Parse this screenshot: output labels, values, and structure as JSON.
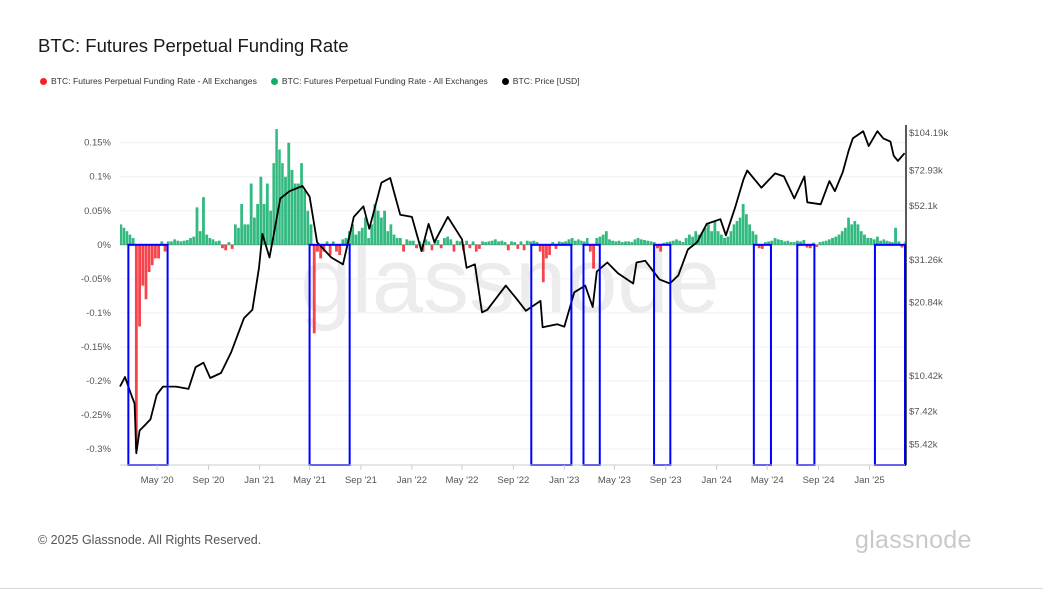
{
  "title": "BTC: Futures Perpetual Funding Rate",
  "legend": [
    {
      "label": "BTC: Futures Perpetual Funding Rate - All Exchanges",
      "color": "#f5222d"
    },
    {
      "label": "BTC: Futures Perpetual Funding Rate - All Exchanges",
      "color": "#0fae6a"
    },
    {
      "label": "BTC: Price [USD]",
      "color": "#000000"
    }
  ],
  "watermark": "glassnode",
  "footer": {
    "copyright": "© 2025 Glassnode. All Rights Reserved.",
    "logo": "glassnode"
  },
  "chart_data": {
    "type": "bar+line",
    "title": "BTC: Futures Perpetual Funding Rate",
    "xlim": [
      "2020-02-02",
      "2025-03-27"
    ],
    "x_ticks": [
      {
        "date": "2020-05-01",
        "label": "May '20"
      },
      {
        "date": "2020-09-01",
        "label": "Sep '20"
      },
      {
        "date": "2021-01-01",
        "label": "Jan '21"
      },
      {
        "date": "2021-05-01",
        "label": "May '21"
      },
      {
        "date": "2021-09-01",
        "label": "Sep '21"
      },
      {
        "date": "2022-01-01",
        "label": "Jan '22"
      },
      {
        "date": "2022-05-01",
        "label": "May '22"
      },
      {
        "date": "2022-09-01",
        "label": "Sep '22"
      },
      {
        "date": "2023-01-01",
        "label": "Jan '23"
      },
      {
        "date": "2023-05-01",
        "label": "May '23"
      },
      {
        "date": "2023-09-01",
        "label": "Sep '23"
      },
      {
        "date": "2024-01-01",
        "label": "Jan '24"
      },
      {
        "date": "2024-05-01",
        "label": "May '24"
      },
      {
        "date": "2024-09-01",
        "label": "Sep '24"
      },
      {
        "date": "2025-01-01",
        "label": "Jan '25"
      }
    ],
    "y_left": {
      "unit": "%",
      "ylim": [
        -0.3235,
        0.176
      ],
      "ticks": [
        {
          "value": 0.15,
          "label": "0.15%"
        },
        {
          "value": 0.1,
          "label": "0.1%"
        },
        {
          "value": 0.05,
          "label": "0.05%"
        },
        {
          "value": 0,
          "label": "0%"
        },
        {
          "value": -0.05,
          "label": "-0.05%"
        },
        {
          "value": -0.1,
          "label": "-0.1%"
        },
        {
          "value": -0.15,
          "label": "-0.15%"
        },
        {
          "value": -0.2,
          "label": "-0.2%"
        },
        {
          "value": -0.25,
          "label": "-0.25%"
        },
        {
          "value": -0.3,
          "label": "-0.3%"
        }
      ],
      "grid": true
    },
    "y_right": {
      "scale": "log",
      "ylim": [
        4470,
        112400
      ],
      "ticks": [
        {
          "value": 104190,
          "label": "$104.19k"
        },
        {
          "value": 72930,
          "label": "$72.93k"
        },
        {
          "value": 52100,
          "label": "$52.1k"
        },
        {
          "value": 31260,
          "label": "$31.26k"
        },
        {
          "value": 20840,
          "label": "$20.84k"
        },
        {
          "value": 10420,
          "label": "$10.42k"
        },
        {
          "value": 7420,
          "label": "$7.42k"
        },
        {
          "value": 5420,
          "label": "$5.42k"
        }
      ]
    },
    "colors": {
      "positive": "#0fae6a",
      "negative": "#f5222d",
      "price": "#000000",
      "highlight": "#0000ff"
    },
    "funding_rate_quarter_month": [
      {
        "month": "2020-02",
        "values": [
          0.03,
          0.025,
          0.02,
          0.015
        ]
      },
      {
        "month": "2020-03",
        "values": [
          0.01,
          -0.3,
          -0.12,
          -0.06
        ]
      },
      {
        "month": "2020-04",
        "values": [
          -0.08,
          -0.04,
          -0.03,
          -0.02
        ]
      },
      {
        "month": "2020-05",
        "values": [
          -0.02,
          0.005,
          -0.01,
          0.005
        ]
      },
      {
        "month": "2020-06",
        "values": [
          0.005,
          0.008,
          0.006,
          0.005
        ]
      },
      {
        "month": "2020-07",
        "values": [
          0.006,
          0.007,
          0.01,
          0.012
        ]
      },
      {
        "month": "2020-08",
        "values": [
          0.055,
          0.02,
          0.07,
          0.015
        ]
      },
      {
        "month": "2020-09",
        "values": [
          0.01,
          0.008,
          0.005,
          0.006
        ]
      },
      {
        "month": "2020-10",
        "values": [
          -0.005,
          -0.008,
          0.004,
          -0.006
        ]
      },
      {
        "month": "2020-11",
        "values": [
          0.03,
          0.025,
          0.06,
          0.03
        ]
      },
      {
        "month": "2020-12",
        "values": [
          0.03,
          0.09,
          0.04,
          0.06
        ]
      },
      {
        "month": "2021-01",
        "values": [
          0.1,
          0.06,
          0.09,
          0.05
        ]
      },
      {
        "month": "2021-02",
        "values": [
          0.12,
          0.17,
          0.14,
          0.12
        ]
      },
      {
        "month": "2021-03",
        "values": [
          0.1,
          0.15,
          0.11,
          0.09
        ]
      },
      {
        "month": "2021-04",
        "values": [
          0.09,
          0.12,
          0.08,
          0.05
        ]
      },
      {
        "month": "2021-05",
        "values": [
          0.03,
          -0.13,
          -0.01,
          -0.02
        ]
      },
      {
        "month": "2021-06",
        "values": [
          -0.01,
          0.005,
          -0.015,
          0.005
        ]
      },
      {
        "month": "2021-07",
        "values": [
          -0.01,
          -0.015,
          0.008,
          0.01
        ]
      },
      {
        "month": "2021-08",
        "values": [
          0.02,
          0.03,
          0.015,
          0.02
        ]
      },
      {
        "month": "2021-09",
        "values": [
          0.025,
          0.04,
          0.01,
          0.03
        ]
      },
      {
        "month": "2021-10",
        "values": [
          0.06,
          0.05,
          0.04,
          0.05
        ]
      },
      {
        "month": "2021-11",
        "values": [
          0.02,
          0.03,
          0.015,
          0.01
        ]
      },
      {
        "month": "2021-12",
        "values": [
          0.01,
          -0.01,
          0.008,
          0.006
        ]
      },
      {
        "month": "2022-01",
        "values": [
          0.006,
          -0.005,
          0.005,
          -0.01
        ]
      },
      {
        "month": "2022-02",
        "values": [
          0.008,
          0.005,
          -0.008,
          0.006
        ]
      },
      {
        "month": "2022-03",
        "values": [
          0.007,
          -0.005,
          0.01,
          0.012
        ]
      },
      {
        "month": "2022-04",
        "values": [
          0.008,
          -0.01,
          0.006,
          0.005
        ]
      },
      {
        "month": "2022-05",
        "values": [
          -0.008,
          0.006,
          -0.005,
          0.005
        ]
      },
      {
        "month": "2022-06",
        "values": [
          -0.01,
          -0.006,
          0.005,
          0.004
        ]
      },
      {
        "month": "2022-07",
        "values": [
          0.005,
          0.006,
          0.008,
          0.005
        ]
      },
      {
        "month": "2022-08",
        "values": [
          0.006,
          0.004,
          -0.008,
          0.005
        ]
      },
      {
        "month": "2022-09",
        "values": [
          0.004,
          -0.006,
          0.005,
          -0.008
        ]
      },
      {
        "month": "2022-10",
        "values": [
          0.006,
          0.005,
          0.006,
          0.004
        ]
      },
      {
        "month": "2022-11",
        "values": [
          -0.01,
          -0.055,
          -0.02,
          -0.015
        ]
      },
      {
        "month": "2022-12",
        "values": [
          0.004,
          -0.006,
          0.005,
          0.004
        ]
      },
      {
        "month": "2023-01",
        "values": [
          0.005,
          0.008,
          0.01,
          0.006
        ]
      },
      {
        "month": "2023-02",
        "values": [
          0.008,
          0.006,
          0.005,
          0.01
        ]
      },
      {
        "month": "2023-03",
        "values": [
          -0.01,
          -0.035,
          0.01,
          0.012
        ]
      },
      {
        "month": "2023-04",
        "values": [
          0.015,
          0.02,
          0.008,
          0.006
        ]
      },
      {
        "month": "2023-05",
        "values": [
          0.005,
          0.006,
          0.004,
          0.005
        ]
      },
      {
        "month": "2023-06",
        "values": [
          0.005,
          0.004,
          0.008,
          0.01
        ]
      },
      {
        "month": "2023-07",
        "values": [
          0.008,
          0.007,
          0.006,
          0.005
        ]
      },
      {
        "month": "2023-08",
        "values": [
          0.004,
          -0.005,
          -0.01,
          0.003
        ]
      },
      {
        "month": "2023-09",
        "values": [
          0.004,
          0.005,
          0.006,
          0.008
        ]
      },
      {
        "month": "2023-10",
        "values": [
          0.006,
          0.004,
          0.01,
          0.015
        ]
      },
      {
        "month": "2023-11",
        "values": [
          0.012,
          0.02,
          0.015,
          0.018
        ]
      },
      {
        "month": "2023-12",
        "values": [
          0.025,
          0.03,
          0.02,
          0.035
        ]
      },
      {
        "month": "2024-01",
        "values": [
          0.02,
          0.015,
          0.01,
          0.012
        ]
      },
      {
        "month": "2024-02",
        "values": [
          0.02,
          0.03,
          0.035,
          0.04
        ]
      },
      {
        "month": "2024-03",
        "values": [
          0.06,
          0.045,
          0.03,
          0.02
        ]
      },
      {
        "month": "2024-04",
        "values": [
          0.015,
          -0.005,
          -0.006,
          0.004
        ]
      },
      {
        "month": "2024-05",
        "values": [
          0.005,
          0.006,
          0.01,
          0.008
        ]
      },
      {
        "month": "2024-06",
        "values": [
          0.007,
          0.005,
          0.006,
          0.004
        ]
      },
      {
        "month": "2024-07",
        "values": [
          0.004,
          0.006,
          0.005,
          0.007
        ]
      },
      {
        "month": "2024-08",
        "values": [
          -0.004,
          -0.005,
          0.003,
          -0.003
        ]
      },
      {
        "month": "2024-09",
        "values": [
          0.004,
          0.005,
          0.006,
          0.008
        ]
      },
      {
        "month": "2024-10",
        "values": [
          0.01,
          0.012,
          0.015,
          0.02
        ]
      },
      {
        "month": "2024-11",
        "values": [
          0.025,
          0.04,
          0.03,
          0.035
        ]
      },
      {
        "month": "2024-12",
        "values": [
          0.03,
          0.02,
          0.015,
          0.01
        ]
      },
      {
        "month": "2025-01",
        "values": [
          0.01,
          0.008,
          0.012,
          0.006
        ]
      },
      {
        "month": "2025-02",
        "values": [
          0.008,
          0.006,
          0.005,
          0.004
        ]
      },
      {
        "month": "2025-03",
        "values": [
          0.025,
          0.005,
          -0.004,
          0.005
        ]
      }
    ],
    "price": [
      [
        "2020-02-02",
        9400
      ],
      [
        "2020-02-14",
        10300
      ],
      [
        "2020-03-01",
        8600
      ],
      [
        "2020-03-08",
        8000
      ],
      [
        "2020-03-12",
        5000
      ],
      [
        "2020-03-20",
        6200
      ],
      [
        "2020-04-01",
        6500
      ],
      [
        "2020-04-15",
        6900
      ],
      [
        "2020-04-30",
        8700
      ],
      [
        "2020-05-15",
        9400
      ],
      [
        "2020-06-15",
        9400
      ],
      [
        "2020-07-15",
        9200
      ],
      [
        "2020-08-01",
        11300
      ],
      [
        "2020-08-20",
        11800
      ],
      [
        "2020-09-05",
        10200
      ],
      [
        "2020-10-01",
        10700
      ],
      [
        "2020-10-25",
        13000
      ],
      [
        "2020-11-25",
        18000
      ],
      [
        "2020-12-15",
        19500
      ],
      [
        "2020-12-31",
        29000
      ],
      [
        "2021-01-08",
        40000
      ],
      [
        "2021-01-25",
        32000
      ],
      [
        "2021-02-20",
        56000
      ],
      [
        "2021-03-14",
        60000
      ],
      [
        "2021-04-14",
        63000
      ],
      [
        "2021-05-01",
        57000
      ],
      [
        "2021-05-19",
        37000
      ],
      [
        "2021-06-22",
        32000
      ],
      [
        "2021-07-20",
        30000
      ],
      [
        "2021-08-15",
        47000
      ],
      [
        "2021-09-07",
        52000
      ],
      [
        "2021-09-21",
        42000
      ],
      [
        "2021-10-20",
        65000
      ],
      [
        "2021-11-10",
        68000
      ],
      [
        "2021-12-04",
        48000
      ],
      [
        "2022-01-01",
        47000
      ],
      [
        "2022-01-24",
        34000
      ],
      [
        "2022-02-10",
        44000
      ],
      [
        "2022-02-24",
        37000
      ],
      [
        "2022-03-28",
        47000
      ],
      [
        "2022-05-01",
        38000
      ],
      [
        "2022-05-12",
        29000
      ],
      [
        "2022-06-01",
        30000
      ],
      [
        "2022-06-18",
        19000
      ],
      [
        "2022-07-01",
        19500
      ],
      [
        "2022-08-14",
        24500
      ],
      [
        "2022-09-10",
        21500
      ],
      [
        "2022-10-01",
        19300
      ],
      [
        "2022-11-05",
        21200
      ],
      [
        "2022-11-10",
        16500
      ],
      [
        "2022-12-15",
        17000
      ],
      [
        "2023-01-01",
        16600
      ],
      [
        "2023-01-25",
        23000
      ],
      [
        "2023-02-20",
        24500
      ],
      [
        "2023-03-10",
        20000
      ],
      [
        "2023-03-20",
        28000
      ],
      [
        "2023-04-14",
        30500
      ],
      [
        "2023-05-10",
        27500
      ],
      [
        "2023-06-15",
        25000
      ],
      [
        "2023-06-23",
        30500
      ],
      [
        "2023-07-14",
        31000
      ],
      [
        "2023-08-17",
        26000
      ],
      [
        "2023-09-11",
        25000
      ],
      [
        "2023-10-01",
        27000
      ],
      [
        "2023-10-24",
        34500
      ],
      [
        "2023-11-15",
        37000
      ],
      [
        "2023-12-08",
        44000
      ],
      [
        "2024-01-10",
        46000
      ],
      [
        "2024-01-23",
        39500
      ],
      [
        "2024-02-15",
        52000
      ],
      [
        "2024-03-05",
        67000
      ],
      [
        "2024-03-14",
        73000
      ],
      [
        "2024-04-17",
        62000
      ],
      [
        "2024-05-20",
        71000
      ],
      [
        "2024-06-10",
        69000
      ],
      [
        "2024-07-05",
        56000
      ],
      [
        "2024-07-29",
        69000
      ],
      [
        "2024-08-05",
        54000
      ],
      [
        "2024-09-06",
        53000
      ],
      [
        "2024-09-27",
        66000
      ],
      [
        "2024-10-10",
        60000
      ],
      [
        "2024-10-29",
        72000
      ],
      [
        "2024-11-12",
        88000
      ],
      [
        "2024-11-22",
        99000
      ],
      [
        "2024-12-17",
        106000
      ],
      [
        "2024-12-30",
        92000
      ],
      [
        "2025-01-20",
        106000
      ],
      [
        "2025-02-03",
        99000
      ],
      [
        "2025-02-20",
        96000
      ],
      [
        "2025-02-28",
        84000
      ],
      [
        "2025-03-10",
        80000
      ],
      [
        "2025-03-26",
        86000
      ]
    ],
    "highlight_ranges": [
      [
        "2020-02-22",
        "2020-05-26"
      ],
      [
        "2021-05-01",
        "2021-08-05"
      ],
      [
        "2022-10-14",
        "2023-01-18"
      ],
      [
        "2023-02-16",
        "2023-03-27"
      ],
      [
        "2023-08-04",
        "2023-09-12"
      ],
      [
        "2024-03-30",
        "2024-05-10"
      ],
      [
        "2024-07-12",
        "2024-08-22"
      ],
      [
        "2025-01-14",
        "2025-03-27"
      ]
    ]
  }
}
